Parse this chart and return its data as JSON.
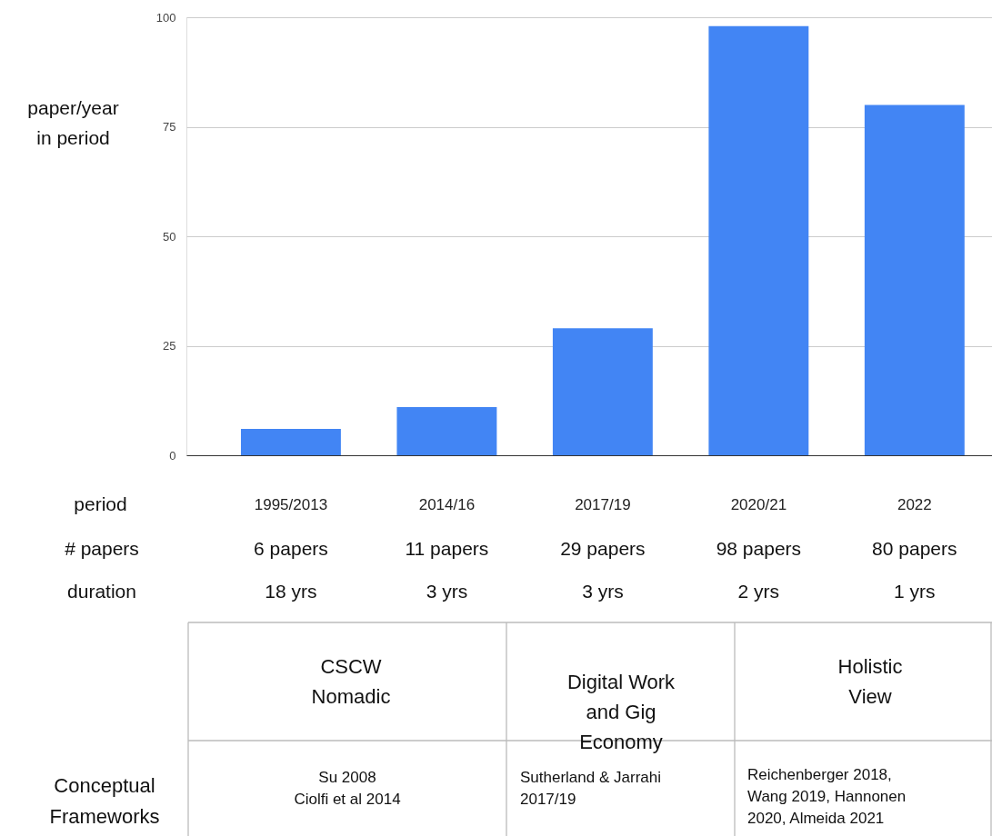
{
  "chart_data": {
    "type": "bar",
    "ylabel": "paper/year\nin period",
    "xlabel": "period",
    "categories": [
      "1995/2013",
      "2014/16",
      "2017/19",
      "2020/21",
      "2022"
    ],
    "values": [
      6,
      11,
      29,
      98,
      80
    ],
    "color": "#4285f4",
    "ylim": [
      0,
      100
    ],
    "yticks": [
      0,
      25,
      50,
      75,
      100
    ],
    "grid": "y",
    "annotations": [
      "# papers",
      "6 papers",
      "11 papers",
      "29 papers",
      "98 papers",
      "80 papers",
      "duration",
      "18 yrs",
      "3 yrs",
      "3 yrs",
      "2 yrs",
      "1 yrs",
      "CSCW\nNomadic",
      "Digital Work\nand Gig\nEconomy",
      "Holistic\nView",
      "Conceptual\nFrameworks",
      "Su 2008\nCiolfi et al 2014",
      "Sutherland & Jarrahi\n2017/19",
      "Reichenberger 2018,\nWang 2019, Hannonen\n2020, Almeida 2021"
    ]
  }
}
